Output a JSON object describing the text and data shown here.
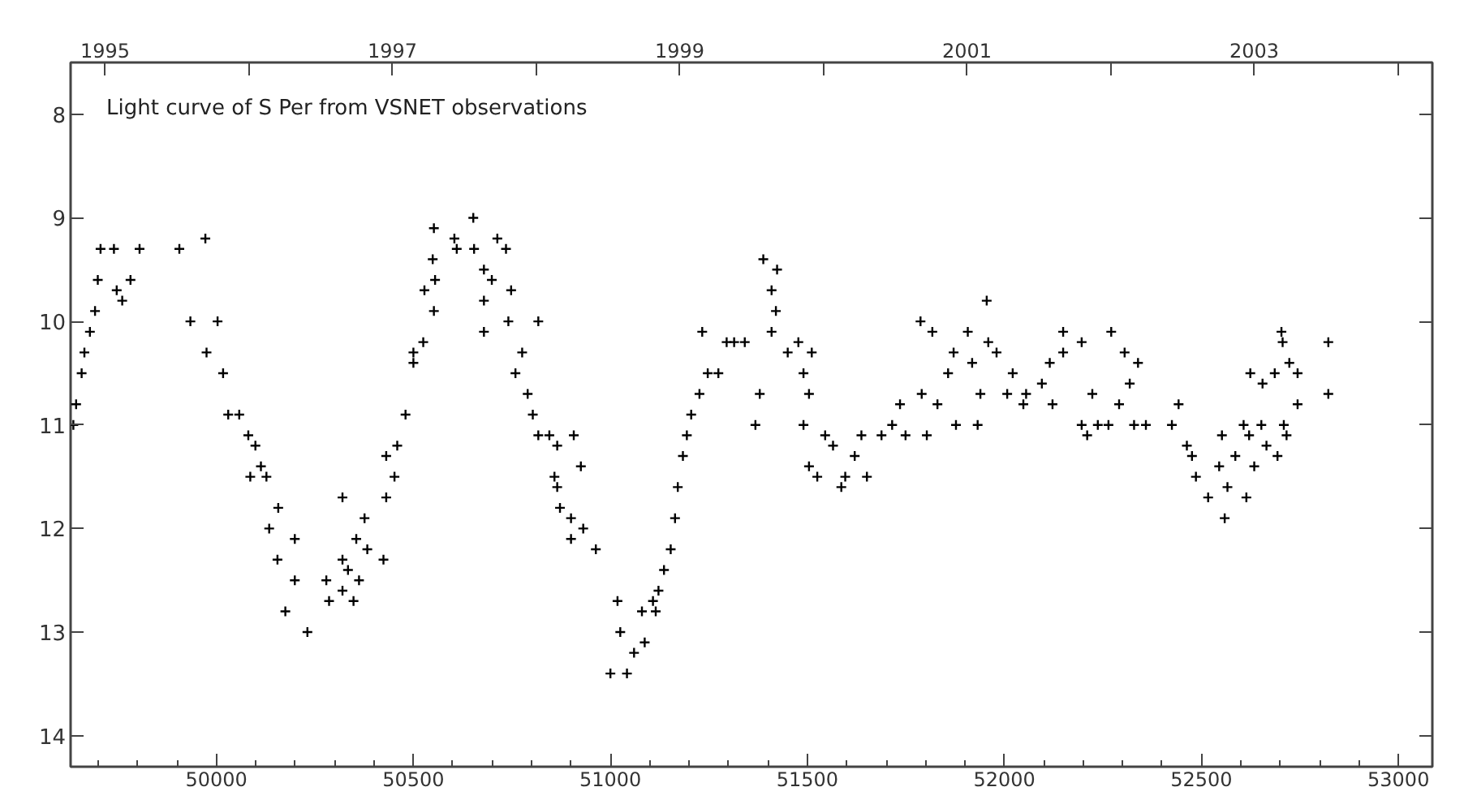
{
  "chart_data": {
    "type": "scatter",
    "title": "Light curve of S Per from      VSNET  observations",
    "marker": "cross",
    "grid": false,
    "xlim": [
      49630,
      53086
    ],
    "ylim": [
      14.3,
      7.5
    ],
    "xticks": [
      {
        "value": 49700,
        "label": null
      },
      {
        "value": 49800,
        "label": null
      },
      {
        "value": 49900,
        "label": null
      },
      50000,
      {
        "value": 50100,
        "label": null
      },
      {
        "value": 50200,
        "label": null
      },
      {
        "value": 50300,
        "label": null
      },
      {
        "value": 50400,
        "label": null
      },
      50500,
      {
        "value": 50600,
        "label": null
      },
      {
        "value": 50700,
        "label": null
      },
      {
        "value": 50800,
        "label": null
      },
      {
        "value": 50900,
        "label": null
      },
      51000,
      {
        "value": 51100,
        "label": null
      },
      {
        "value": 51200,
        "label": null
      },
      {
        "value": 51300,
        "label": null
      },
      {
        "value": 51400,
        "label": null
      },
      51500,
      {
        "value": 51600,
        "label": null
      },
      {
        "value": 51700,
        "label": null
      },
      {
        "value": 51800,
        "label": null
      },
      {
        "value": 51900,
        "label": null
      },
      52000,
      {
        "value": 52100,
        "label": null
      },
      {
        "value": 52200,
        "label": null
      },
      {
        "value": 52300,
        "label": null
      },
      {
        "value": 52400,
        "label": null
      },
      52500,
      {
        "value": 52600,
        "label": null
      },
      {
        "value": 52700,
        "label": null
      },
      {
        "value": 52800,
        "label": null
      },
      {
        "value": 52900,
        "label": null
      },
      53000
    ],
    "yticks": [
      8,
      9,
      10,
      11,
      12,
      13,
      14
    ],
    "x2lim": [
      1994.76,
      2004.24
    ],
    "x2ticks": [
      1995,
      {
        "value": 1996,
        "label": null
      },
      1997,
      {
        "value": 1998,
        "label": null
      },
      1999,
      {
        "value": 2000,
        "label": null
      },
      2001,
      {
        "value": 2002,
        "label": null
      },
      2003,
      {
        "value": 2004,
        "label": null
      }
    ],
    "series": [
      {
        "color": "#000000",
        "x": [
          49637,
          49644,
          49658,
          49665,
          49679,
          49692,
          49699,
          49706,
          49740,
          49747,
          49761,
          49782,
          49805,
          49906,
          49972,
          49934,
          49975,
          50003,
          50017,
          50030,
          50058,
          50081,
          50099,
          50113,
          50086,
          50127,
          50134,
          50155,
          50157,
          50175,
          50199,
          50199,
          50231,
          50279,
          50286,
          50320,
          50320,
          50320,
          50334,
          50348,
          50362,
          50355,
          50376,
          50383,
          50424,
          50431,
          50431,
          50452,
          50459,
          50480,
          50500,
          50500,
          50525,
          50528,
          50549,
          50555,
          50552,
          50552,
          50604,
          50610,
          50652,
          50654,
          50679,
          50679,
          50699,
          50713,
          50735,
          50741,
          50748,
          50679,
          50759,
          50776,
          50790,
          50803,
          50817,
          50817,
          50845,
          50865,
          50858,
          50865,
          50872,
          50900,
          50907,
          50925,
          50900,
          50931,
          50963,
          51000,
          51018,
          51025,
          51042,
          51060,
          51087,
          51080,
          51108,
          51115,
          51122,
          51136,
          51153,
          51164,
          51171,
          51184,
          51194,
          51205,
          51226,
          51247,
          51233,
          51274,
          51295,
          51314,
          51341,
          51368,
          51379,
          51388,
          51423,
          51409,
          51420,
          51409,
          51450,
          51477,
          51490,
          51504,
          51511,
          51490,
          51504,
          51525,
          51545,
          51565,
          51586,
          51596,
          51620,
          51651,
          51637,
          51688,
          51715,
          51749,
          51735,
          51787,
          51790,
          51803,
          51817,
          51830,
          51857,
          51871,
          51877,
          51907,
          51918,
          51932,
          51939,
          51955,
          51959,
          51980,
          52007,
          52021,
          52055,
          52048,
          52095,
          52115,
          52122,
          52149,
          52149,
          52196,
          52196,
          52210,
          52237,
          52223,
          52271,
          52264,
          52291,
          52305,
          52318,
          52339,
          52359,
          52329,
          52425,
          52442,
          52463,
          52476,
          52486,
          52517,
          52552,
          52545,
          52559,
          52566,
          52586,
          52607,
          52614,
          52624,
          52621,
          52634,
          52655,
          52652,
          52665,
          52686,
          52693,
          52703,
          52706,
          52709,
          52716,
          52723,
          52744,
          52744,
          52822,
          52822
        ],
        "values": [
          11.0,
          10.8,
          10.5,
          10.3,
          10.1,
          9.9,
          9.6,
          9.3,
          9.3,
          9.7,
          9.8,
          9.6,
          9.3,
          9.3,
          9.2,
          10.0,
          10.3,
          10.0,
          10.5,
          10.9,
          10.9,
          11.1,
          11.2,
          11.4,
          11.5,
          11.5,
          12.0,
          12.3,
          11.8,
          12.8,
          12.1,
          12.5,
          13.0,
          12.5,
          12.7,
          12.6,
          12.3,
          11.7,
          12.4,
          12.7,
          12.5,
          12.1,
          11.9,
          12.2,
          12.3,
          11.7,
          11.3,
          11.5,
          11.2,
          10.9,
          10.3,
          10.4,
          10.2,
          9.7,
          9.4,
          9.6,
          9.9,
          9.1,
          9.2,
          9.3,
          9.0,
          9.3,
          9.5,
          9.8,
          9.6,
          9.2,
          9.3,
          10.0,
          9.7,
          10.1,
          10.5,
          10.3,
          10.7,
          10.9,
          10.0,
          11.1,
          11.1,
          11.2,
          11.5,
          11.6,
          11.8,
          11.9,
          11.1,
          11.4,
          12.1,
          12.0,
          12.2,
          13.4,
          12.7,
          13.0,
          13.4,
          13.2,
          13.1,
          12.8,
          12.7,
          12.8,
          12.6,
          12.4,
          12.2,
          11.9,
          11.6,
          11.3,
          11.1,
          10.9,
          10.7,
          10.5,
          10.1,
          10.5,
          10.2,
          10.2,
          10.2,
          11.0,
          10.7,
          9.4,
          9.5,
          9.7,
          9.9,
          10.1,
          10.3,
          10.2,
          10.5,
          10.7,
          10.3,
          11.0,
          11.4,
          11.5,
          11.1,
          11.2,
          11.6,
          11.5,
          11.3,
          11.5,
          11.1,
          11.1,
          11.0,
          11.1,
          10.8,
          10.0,
          10.7,
          11.1,
          10.1,
          10.8,
          10.5,
          10.3,
          11.0,
          10.1,
          10.4,
          11.0,
          10.7,
          9.8,
          10.2,
          10.3,
          10.7,
          10.5,
          10.7,
          10.8,
          10.6,
          10.4,
          10.8,
          10.1,
          10.3,
          10.2,
          11.0,
          11.1,
          11.0,
          10.7,
          10.1,
          11.0,
          10.8,
          10.3,
          10.6,
          10.4,
          11.0,
          11.0,
          11.0,
          10.8,
          11.2,
          11.3,
          11.5,
          11.7,
          11.1,
          11.4,
          11.9,
          11.6,
          11.3,
          11.0,
          11.7,
          10.5,
          11.1,
          11.4,
          10.6,
          11.0,
          11.2,
          10.5,
          11.3,
          10.1,
          10.2,
          11.0,
          11.1,
          10.4,
          10.8,
          10.5,
          10.2,
          10.7
        ]
      }
    ]
  }
}
